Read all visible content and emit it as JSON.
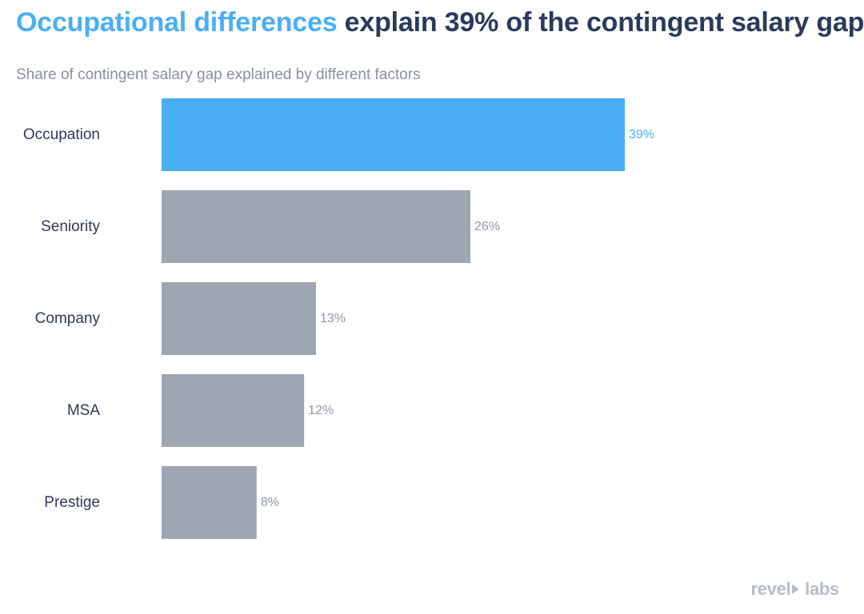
{
  "header": {
    "title_highlight": "Occupational differences",
    "title_rest": " explain 39% of the contingent salary gap",
    "subtitle": "Share of contingent salary gap explained by different factors"
  },
  "colors": {
    "highlight": "#4aaef5",
    "title_dark": "#2b3a5c",
    "bar_gray": "#9ea5b3",
    "label_gray": "#8f96a3",
    "subtitle_gray": "#8a9099",
    "category_text": "#2b3a5c"
  },
  "logo": {
    "part1": "revel",
    "part2": "labs",
    "icon": "play-triangle-icon"
  },
  "chart_data": {
    "type": "bar",
    "orientation": "horizontal",
    "categories": [
      "Occupation",
      "Seniority",
      "Company",
      "MSA",
      "Prestige"
    ],
    "values": [
      39,
      26,
      13,
      12,
      8
    ],
    "value_labels": [
      "39%",
      "26%",
      "13%",
      "12%",
      "8%"
    ],
    "unit": "%",
    "highlighted_index": 0,
    "xlim": [
      0,
      39
    ],
    "grid": false,
    "legend": "none"
  }
}
